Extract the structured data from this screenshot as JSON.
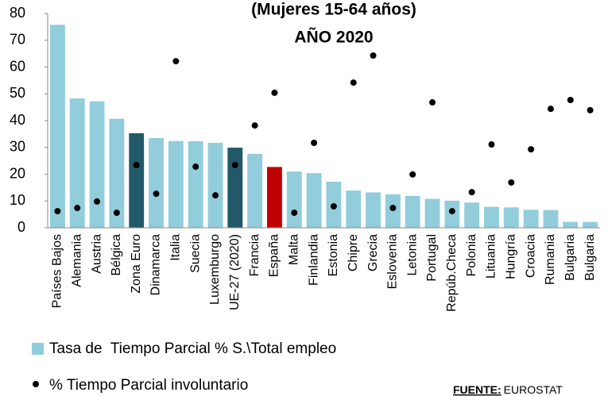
{
  "chart_data": {
    "type": "bar",
    "title": "(Mujeres 15-64 años)",
    "subtitle": "AÑO 2020",
    "categories": [
      "Países Bajos",
      "Alemania",
      "Austria",
      "Bélgica",
      "Zona Euro",
      "Dinamarca",
      "Italia",
      "Suecia",
      "Luxemburgo",
      "UE-27 (2020)",
      "Francia",
      "España",
      "Malta",
      "Finlandia",
      "Estonia",
      "Chipre",
      "Grecia",
      "Eslovenia",
      "Letonia",
      "Portugal",
      "Repúb.Checa",
      "Polonia",
      "Lituania",
      "Hungría",
      "Croacia",
      "Rumania",
      "Bulgaria",
      "Bulgaria"
    ],
    "series": [
      {
        "name": "Tasa de  Tiempo Parcial % S.\\Total empleo",
        "type": "bar",
        "color": "#92cddc",
        "colors": [
          "#92cddc",
          "#92cddc",
          "#92cddc",
          "#92cddc",
          "#215968",
          "#92cddc",
          "#92cddc",
          "#92cddc",
          "#92cddc",
          "#215968",
          "#92cddc",
          "#c00000",
          "#92cddc",
          "#92cddc",
          "#92cddc",
          "#92cddc",
          "#92cddc",
          "#92cddc",
          "#92cddc",
          "#92cddc",
          "#92cddc",
          "#92cddc",
          "#92cddc",
          "#92cddc",
          "#92cddc",
          "#92cddc",
          "#92cddc",
          "#92cddc"
        ],
        "values": [
          75.8,
          48.3,
          47.2,
          40.7,
          35.3,
          33.5,
          32.4,
          32.3,
          31.7,
          29.9,
          27.6,
          22.7,
          21.0,
          20.4,
          17.2,
          13.9,
          13.2,
          12.5,
          11.9,
          10.8,
          10.1,
          9.4,
          7.8,
          7.6,
          6.7,
          6.6,
          2.2,
          2.2
        ]
      },
      {
        "name": "% Tiempo Parcial involuntario",
        "type": "scatter",
        "color": "#000000",
        "values": [
          6.2,
          7.4,
          9.8,
          5.6,
          23.4,
          12.7,
          62.2,
          22.8,
          12.1,
          23.4,
          38.2,
          50.4,
          5.6,
          31.7,
          8.0,
          54.2,
          64.3,
          7.4,
          19.9,
          46.8,
          6.2,
          13.3,
          31.1,
          16.9,
          29.3,
          44.4,
          47.7,
          43.9
        ]
      }
    ],
    "ylim": [
      0,
      80
    ],
    "yticks": [
      0,
      10,
      20,
      30,
      40,
      50,
      60,
      70,
      80
    ],
    "source_label": "FUENTE:",
    "source": "EUROSTAT"
  }
}
